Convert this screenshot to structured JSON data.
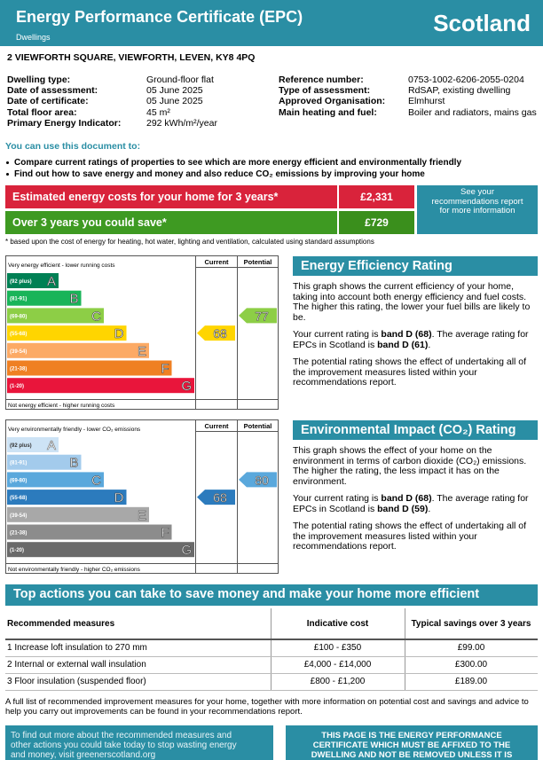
{
  "header": {
    "title": "Energy Performance Certificate (EPC)",
    "subtitle": "Dwellings",
    "country": "Scotland"
  },
  "address": "2 VIEWFORTH SQUARE,  VIEWFORTH, LEVEN, KY8 4PQ",
  "details": {
    "left": [
      {
        "label": "Dwelling type:",
        "value": "Ground-floor flat"
      },
      {
        "label": "Date of assessment:",
        "value": "05 June 2025"
      },
      {
        "label": "Date of certificate:",
        "value": "05 June 2025"
      },
      {
        "label": "Total floor area:",
        "value": "45 m²"
      },
      {
        "label": "Primary Energy Indicator:",
        "value": "292 kWh/m²/year"
      }
    ],
    "right": [
      {
        "label": "Reference number:",
        "value": "0753-1002-6206-2055-0204"
      },
      {
        "label": "Type of assessment:",
        "value": "RdSAP, existing dwelling"
      },
      {
        "label": "Approved Organisation:",
        "value": "Elmhurst"
      },
      {
        "label": "Main heating and fuel:",
        "value": "Boiler and radiators, mains gas"
      }
    ]
  },
  "use_heading": "You can use this document to:",
  "uses": [
    "Compare current ratings of properties to see which are more energy efficient and environmentally friendly",
    "Find out how to save energy and money and also reduce CO₂ emissions by improving your home"
  ],
  "costs": {
    "rows": [
      {
        "label": "Estimated energy costs for your home for 3 years*",
        "value": "£2,331"
      },
      {
        "label": "Over 3 years you could save*",
        "value": "£729"
      }
    ],
    "note": "See your recommendations report for more information",
    "footnote": "* based upon the cost of energy for heating, hot water, lighting and ventilation, calculated using standard assumptions"
  },
  "ratings": [
    {
      "title": "Energy Efficiency Rating",
      "top_label": "Very energy efficient - lower running costs",
      "bottom_label": "Not energy efficient - higher running costs",
      "current_header": "Current",
      "potential_header": "Potential",
      "bands": [
        {
          "range": "(92 plus)",
          "letter": "A"
        },
        {
          "range": "(81-91)",
          "letter": "B"
        },
        {
          "range": "(69-80)",
          "letter": "C"
        },
        {
          "range": "(55-68)",
          "letter": "D"
        },
        {
          "range": "(39-54)",
          "letter": "E"
        },
        {
          "range": "(21-38)",
          "letter": "F"
        },
        {
          "range": "(1-20)",
          "letter": "G"
        }
      ],
      "current": 68,
      "potential": 77,
      "paragraphs": [
        [
          "This graph shows the current efficiency of your home, taking into account both energy efficiency and fuel costs. The higher this rating, the lower your fuel bills are likely to be."
        ],
        [
          "Your current rating is ",
          "band D (68)",
          ". The average rating for EPCs in Scotland is ",
          "band D (61)",
          "."
        ],
        [
          "The potential rating shows the effect of undertaking all of the improvement measures listed within your recommendations report."
        ]
      ]
    },
    {
      "title": "Environmental Impact (CO₂) Rating",
      "top_label": "Very environmentally friendly - lower CO₂ emissions",
      "bottom_label": "Not environmentally friendly - higher CO₂ emissions",
      "current_header": "Current",
      "potential_header": "Potential",
      "bands": [
        {
          "range": "(92 plus)",
          "letter": "A"
        },
        {
          "range": "(81-91)",
          "letter": "B"
        },
        {
          "range": "(69-80)",
          "letter": "C"
        },
        {
          "range": "(55-68)",
          "letter": "D"
        },
        {
          "range": "(39-54)",
          "letter": "E"
        },
        {
          "range": "(21-38)",
          "letter": "F"
        },
        {
          "range": "(1-20)",
          "letter": "G"
        }
      ],
      "current": 68,
      "potential": 80,
      "paragraphs": [
        [
          "This graph shows the effect of your home on the environment in terms of carbon dioxide (CO₂) emissions. The higher the rating, the less impact it has on the environment."
        ],
        [
          "Your current rating is ",
          "band D (68)",
          ". The average rating for EPCs in Scotland is ",
          "band D (59)",
          "."
        ],
        [
          "The potential rating shows the effect of undertaking all of the improvement measures listed within your recommendations report."
        ]
      ]
    }
  ],
  "actions": {
    "title": "Top actions you can take to save money and make your home more efficient",
    "headers": [
      "Recommended measures",
      "Indicative cost",
      "Typical savings over 3 years"
    ],
    "rows": [
      [
        "1 Increase loft insulation to 270 mm",
        "£100 - £350",
        "£99.00"
      ],
      [
        "2 Internal or external wall insulation",
        "£4,000 - £14,000",
        "£300.00"
      ],
      [
        "3 Floor insulation (suspended floor)",
        "£800 - £1,200",
        "£189.00"
      ]
    ],
    "note": "A full list of recommended improvement measures for your home, together with more information on potential cost and savings and advice to help you carry out improvements can be found in your recommendations report."
  },
  "footer": {
    "left": "To find out more about the recommended measures and other actions you could take today to stop wasting energy and money, visit greenerscotland.org",
    "right": "THIS PAGE IS THE ENERGY PERFORMANCE CERTIFICATE WHICH MUST BE AFFIXED TO THE DWELLING AND NOT BE REMOVED UNLESS IT IS"
  }
}
